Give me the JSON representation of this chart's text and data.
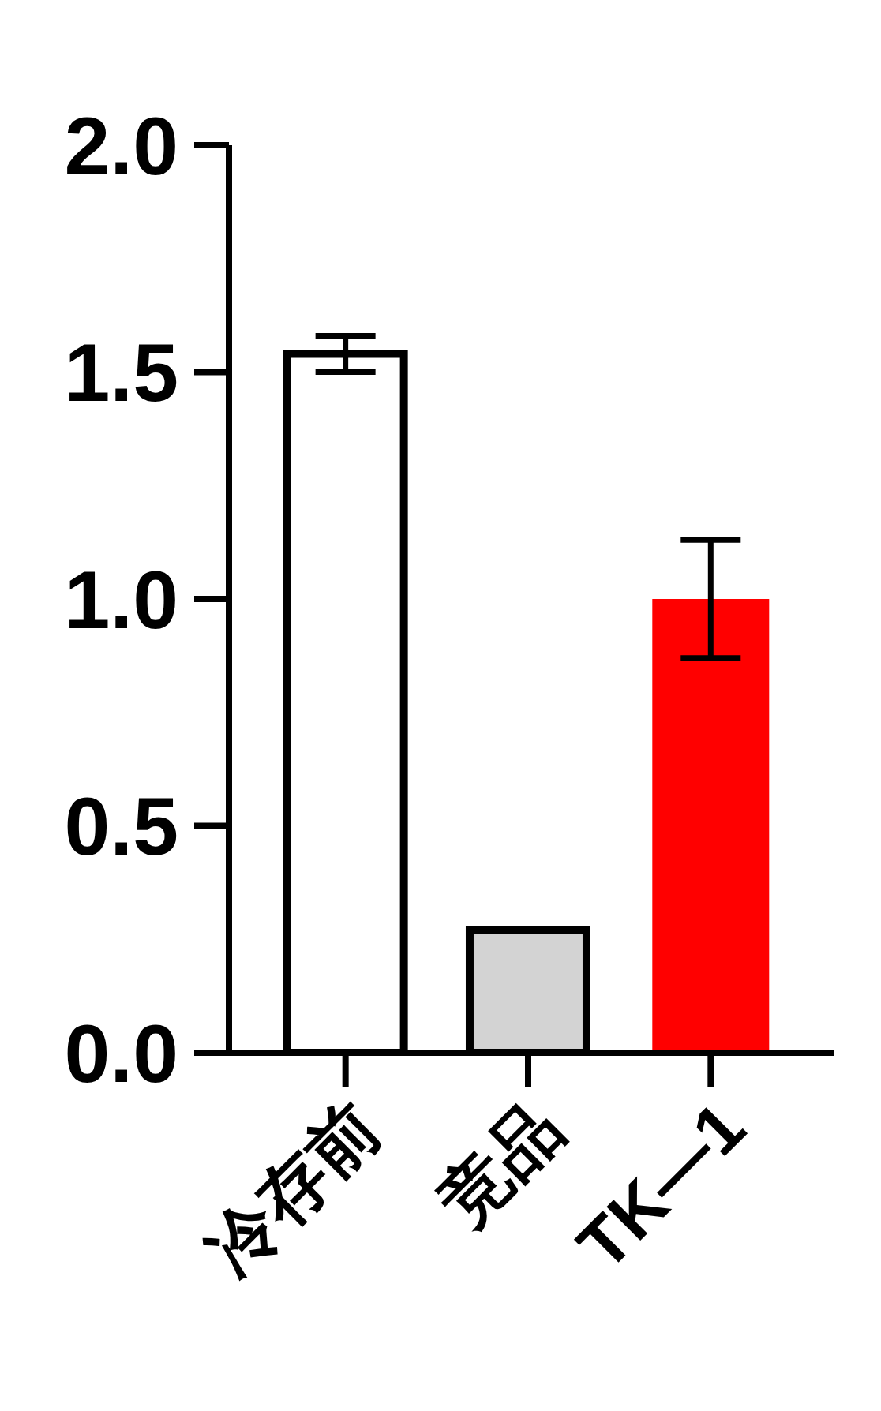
{
  "chart_data": {
    "type": "bar",
    "categories": [
      "冷存前",
      "竞品",
      "TK—1"
    ],
    "values": [
      1.54,
      0.27,
      1.0
    ],
    "colors": [
      "#ffffff",
      "#d3d3d3",
      "#ff0000"
    ],
    "errors": [
      0.04,
      null,
      0.13
    ],
    "ylim": [
      0,
      2
    ],
    "yticks": [
      {
        "value": 0,
        "label": "0.0"
      },
      {
        "value": 0.5,
        "label": "0.5"
      },
      {
        "value": 1,
        "label": "1.0"
      },
      {
        "value": 1.5,
        "label": "1.5"
      },
      {
        "value": 2,
        "label": "2.0"
      }
    ]
  }
}
